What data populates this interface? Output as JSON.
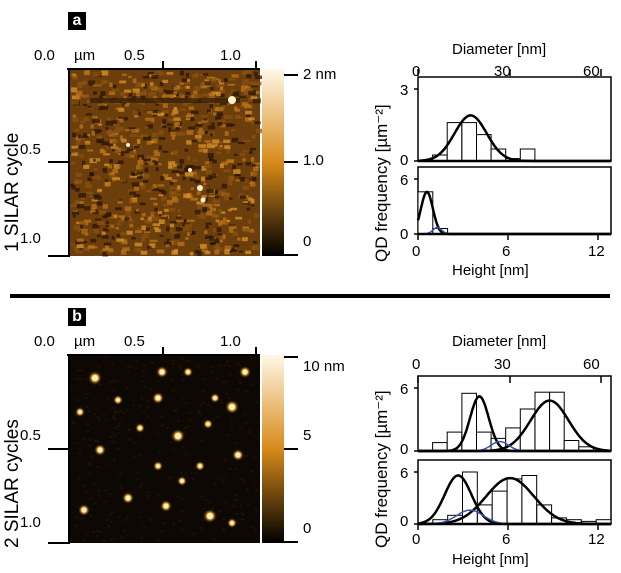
{
  "panels": [
    {
      "label": "a",
      "row_label": "1 SILAR cycle",
      "afm": {
        "x_ticks": [
          "0.0",
          "µm",
          "0.5",
          "1.0"
        ],
        "y_ticks": [
          "0.5",
          "1.0"
        ],
        "colorbar_ticks": [
          "2 nm",
          "1.0",
          "0"
        ],
        "colorbar_max_nm": 2,
        "colors": {
          "dark": "#000000",
          "mid": "#d88a1a",
          "light": "#fff8e6"
        }
      },
      "histograms": {
        "top": {
          "xlabel": "Diameter [nm]",
          "x_ticks": [
            "0",
            "30",
            "60"
          ],
          "y_ticks": [
            "3",
            "0"
          ]
        },
        "bottom": {
          "xlabel": "Height [nm]",
          "x_ticks": [
            "0",
            "6",
            "12"
          ],
          "y_ticks": [
            "6",
            "0"
          ]
        },
        "ylabel": "QD frequency [µm⁻²]"
      }
    },
    {
      "label": "b",
      "row_label": "2 SILAR cycles",
      "afm": {
        "x_ticks": [
          "0.0",
          "µm",
          "0.5",
          "1.0"
        ],
        "y_ticks": [
          "0.5",
          "1.0"
        ],
        "colorbar_ticks": [
          "10 nm",
          "5",
          "0"
        ],
        "colorbar_max_nm": 10,
        "colors": {
          "dark": "#000000",
          "mid": "#d88a1a",
          "light": "#fff8e6"
        }
      },
      "histograms": {
        "top": {
          "xlabel": "Diameter [nm]",
          "x_ticks": [
            "0",
            "30",
            "60"
          ],
          "y_ticks": [
            "6",
            "0"
          ]
        },
        "bottom": {
          "xlabel": "Height [nm]",
          "x_ticks": [
            "0",
            "6",
            "12"
          ],
          "y_ticks": [
            "6",
            "0"
          ]
        },
        "ylabel": "QD frequency [µm⁻²]"
      }
    }
  ],
  "chart_data": [
    {
      "type": "bar",
      "panel": "a-diameter",
      "xlabel": "Diameter [nm]",
      "xlim": [
        0,
        66
      ],
      "ylim": [
        0,
        3
      ],
      "bin_width": 5,
      "bin_starts": [
        5,
        10,
        15,
        20,
        25,
        30,
        35
      ],
      "values": [
        0.25,
        1.6,
        1.6,
        1.1,
        0.5,
        0.1,
        0.5
      ],
      "fits": [
        {
          "mu": 18,
          "sigma": 5.5,
          "amp": 1.9,
          "color": "#000000"
        }
      ]
    },
    {
      "type": "bar",
      "panel": "a-height",
      "xlabel": "Height [nm]",
      "xlim": [
        0,
        13
      ],
      "ylim": [
        0,
        6
      ],
      "bin_width": 1,
      "bin_starts": [
        0,
        1
      ],
      "values": [
        4.6,
        0.6
      ],
      "fits": [
        {
          "mu": 0.6,
          "sigma": 0.4,
          "amp": 4.6,
          "color": "#000000"
        },
        {
          "mu": 1.3,
          "sigma": 0.3,
          "amp": 0.7,
          "color": "#3355aa"
        }
      ]
    },
    {
      "type": "bar",
      "panel": "b-diameter",
      "xlabel": "Diameter [nm]",
      "xlim": [
        0,
        66
      ],
      "ylim": [
        0,
        6
      ],
      "bin_width": 5,
      "bin_starts": [
        5,
        10,
        15,
        20,
        25,
        30,
        35,
        40,
        45,
        50,
        55
      ],
      "values": [
        0.8,
        1.8,
        5.5,
        1.8,
        1.2,
        2.2,
        4.0,
        5.6,
        5.6,
        1.0,
        0.4
      ],
      "fits": [
        {
          "mu": 21,
          "sigma": 3.2,
          "amp": 5.2,
          "color": "#000000"
        },
        {
          "mu": 45,
          "sigma": 6.5,
          "amp": 4.8,
          "color": "#000000"
        },
        {
          "mu": 28,
          "sigma": 3.0,
          "amp": 0.9,
          "color": "#3355aa"
        }
      ]
    },
    {
      "type": "bar",
      "panel": "b-height",
      "xlabel": "Height [nm]",
      "xlim": [
        0,
        13
      ],
      "ylim": [
        0,
        6
      ],
      "bin_width": 1,
      "bin_starts": [
        1,
        2,
        3,
        4,
        5,
        6,
        7,
        8,
        9,
        10,
        11,
        12
      ],
      "values": [
        0.5,
        1.0,
        6.0,
        2.2,
        3.8,
        5.2,
        5.6,
        2.2,
        0.7,
        0.5,
        0.3,
        0.5
      ],
      "fits": [
        {
          "mu": 2.7,
          "sigma": 0.9,
          "amp": 5.6,
          "color": "#000000"
        },
        {
          "mu": 6.2,
          "sigma": 1.6,
          "amp": 5.3,
          "color": "#000000"
        },
        {
          "mu": 3.5,
          "sigma": 0.9,
          "amp": 1.6,
          "color": "#3355aa"
        }
      ]
    }
  ]
}
